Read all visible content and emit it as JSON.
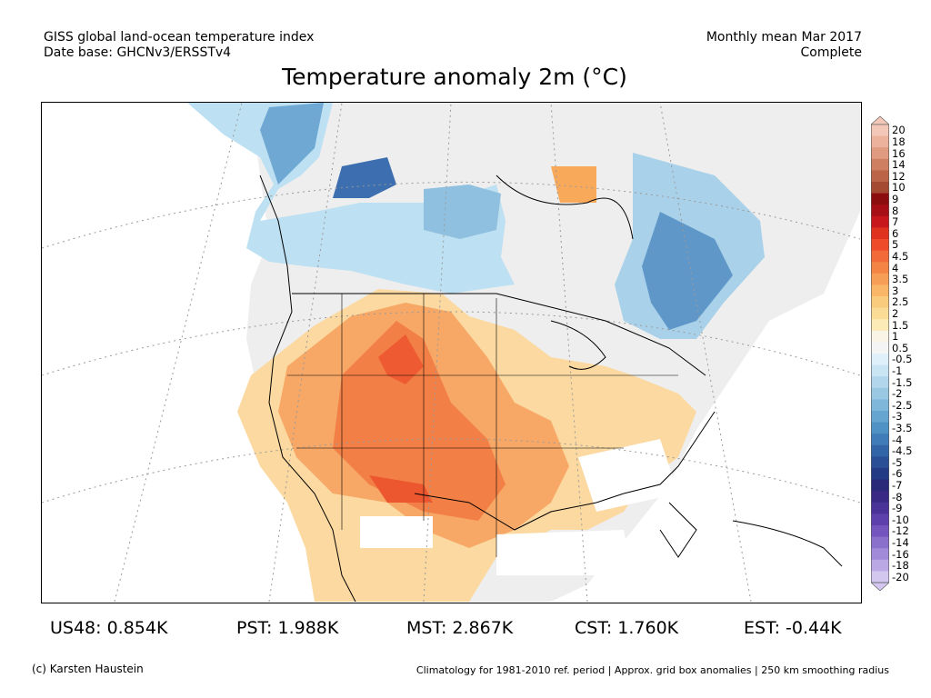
{
  "header": {
    "left_line1": "GISS global land-ocean temperature index",
    "left_line2": "Date base: GHCNv3/ERSSTv4",
    "right_line1": "Monthly mean Mar 2017",
    "right_line2": "Complete"
  },
  "title": "Temperature anomaly 2m (°C)",
  "colorbar": {
    "levels": [
      "20",
      "18",
      "16",
      "14",
      "12",
      "10",
      "9",
      "8",
      "7",
      "6",
      "5",
      "4.5",
      "4",
      "3.5",
      "3",
      "2.5",
      "2",
      "1.5",
      "1",
      "0.5",
      "-0.5",
      "-1",
      "-1.5",
      "-2",
      "-2.5",
      "-3",
      "-3.5",
      "-4",
      "-4.5",
      "-5",
      "-6",
      "-7",
      "-8",
      "-9",
      "-10",
      "-12",
      "-14",
      "-16",
      "-18",
      "-20"
    ],
    "colors": [
      "#f3c8b8",
      "#ecb29c",
      "#e09a7f",
      "#cf7f61",
      "#bb6448",
      "#a44a33",
      "#8c0d0d",
      "#a50f15",
      "#c8171c",
      "#e0301e",
      "#ee4b2b",
      "#f26a3a",
      "#f38446",
      "#f69e55",
      "#f8b666",
      "#f9cb7c",
      "#fbdc96",
      "#fdebb7",
      "#faf4e6",
      "#f4f4f4",
      "#e0f0fa",
      "#c9e4f3",
      "#b2d7ec",
      "#99c8e3",
      "#7fb7da",
      "#66a5cf",
      "#5092c4",
      "#3f7cb8",
      "#3265a8",
      "#2a4f96",
      "#233a84",
      "#2a2878",
      "#3a2a86",
      "#4a3398",
      "#5d40ab",
      "#7355bd",
      "#8a6fcb",
      "#a18ad8",
      "#baa8e4",
      "#d3c7f0"
    ]
  },
  "stats": [
    {
      "label": "US48: 0.854K"
    },
    {
      "label": "PST: 1.988K"
    },
    {
      "label": "MST: 2.867K"
    },
    {
      "label": "CST: 1.760K"
    },
    {
      "label": "EST: -0.44K"
    }
  ],
  "credit": "(c) Karsten Haustein",
  "footnote": "Climatology for 1981-2010 ref. period | Approx. grid box anomalies | 250 km smoothing radius"
}
